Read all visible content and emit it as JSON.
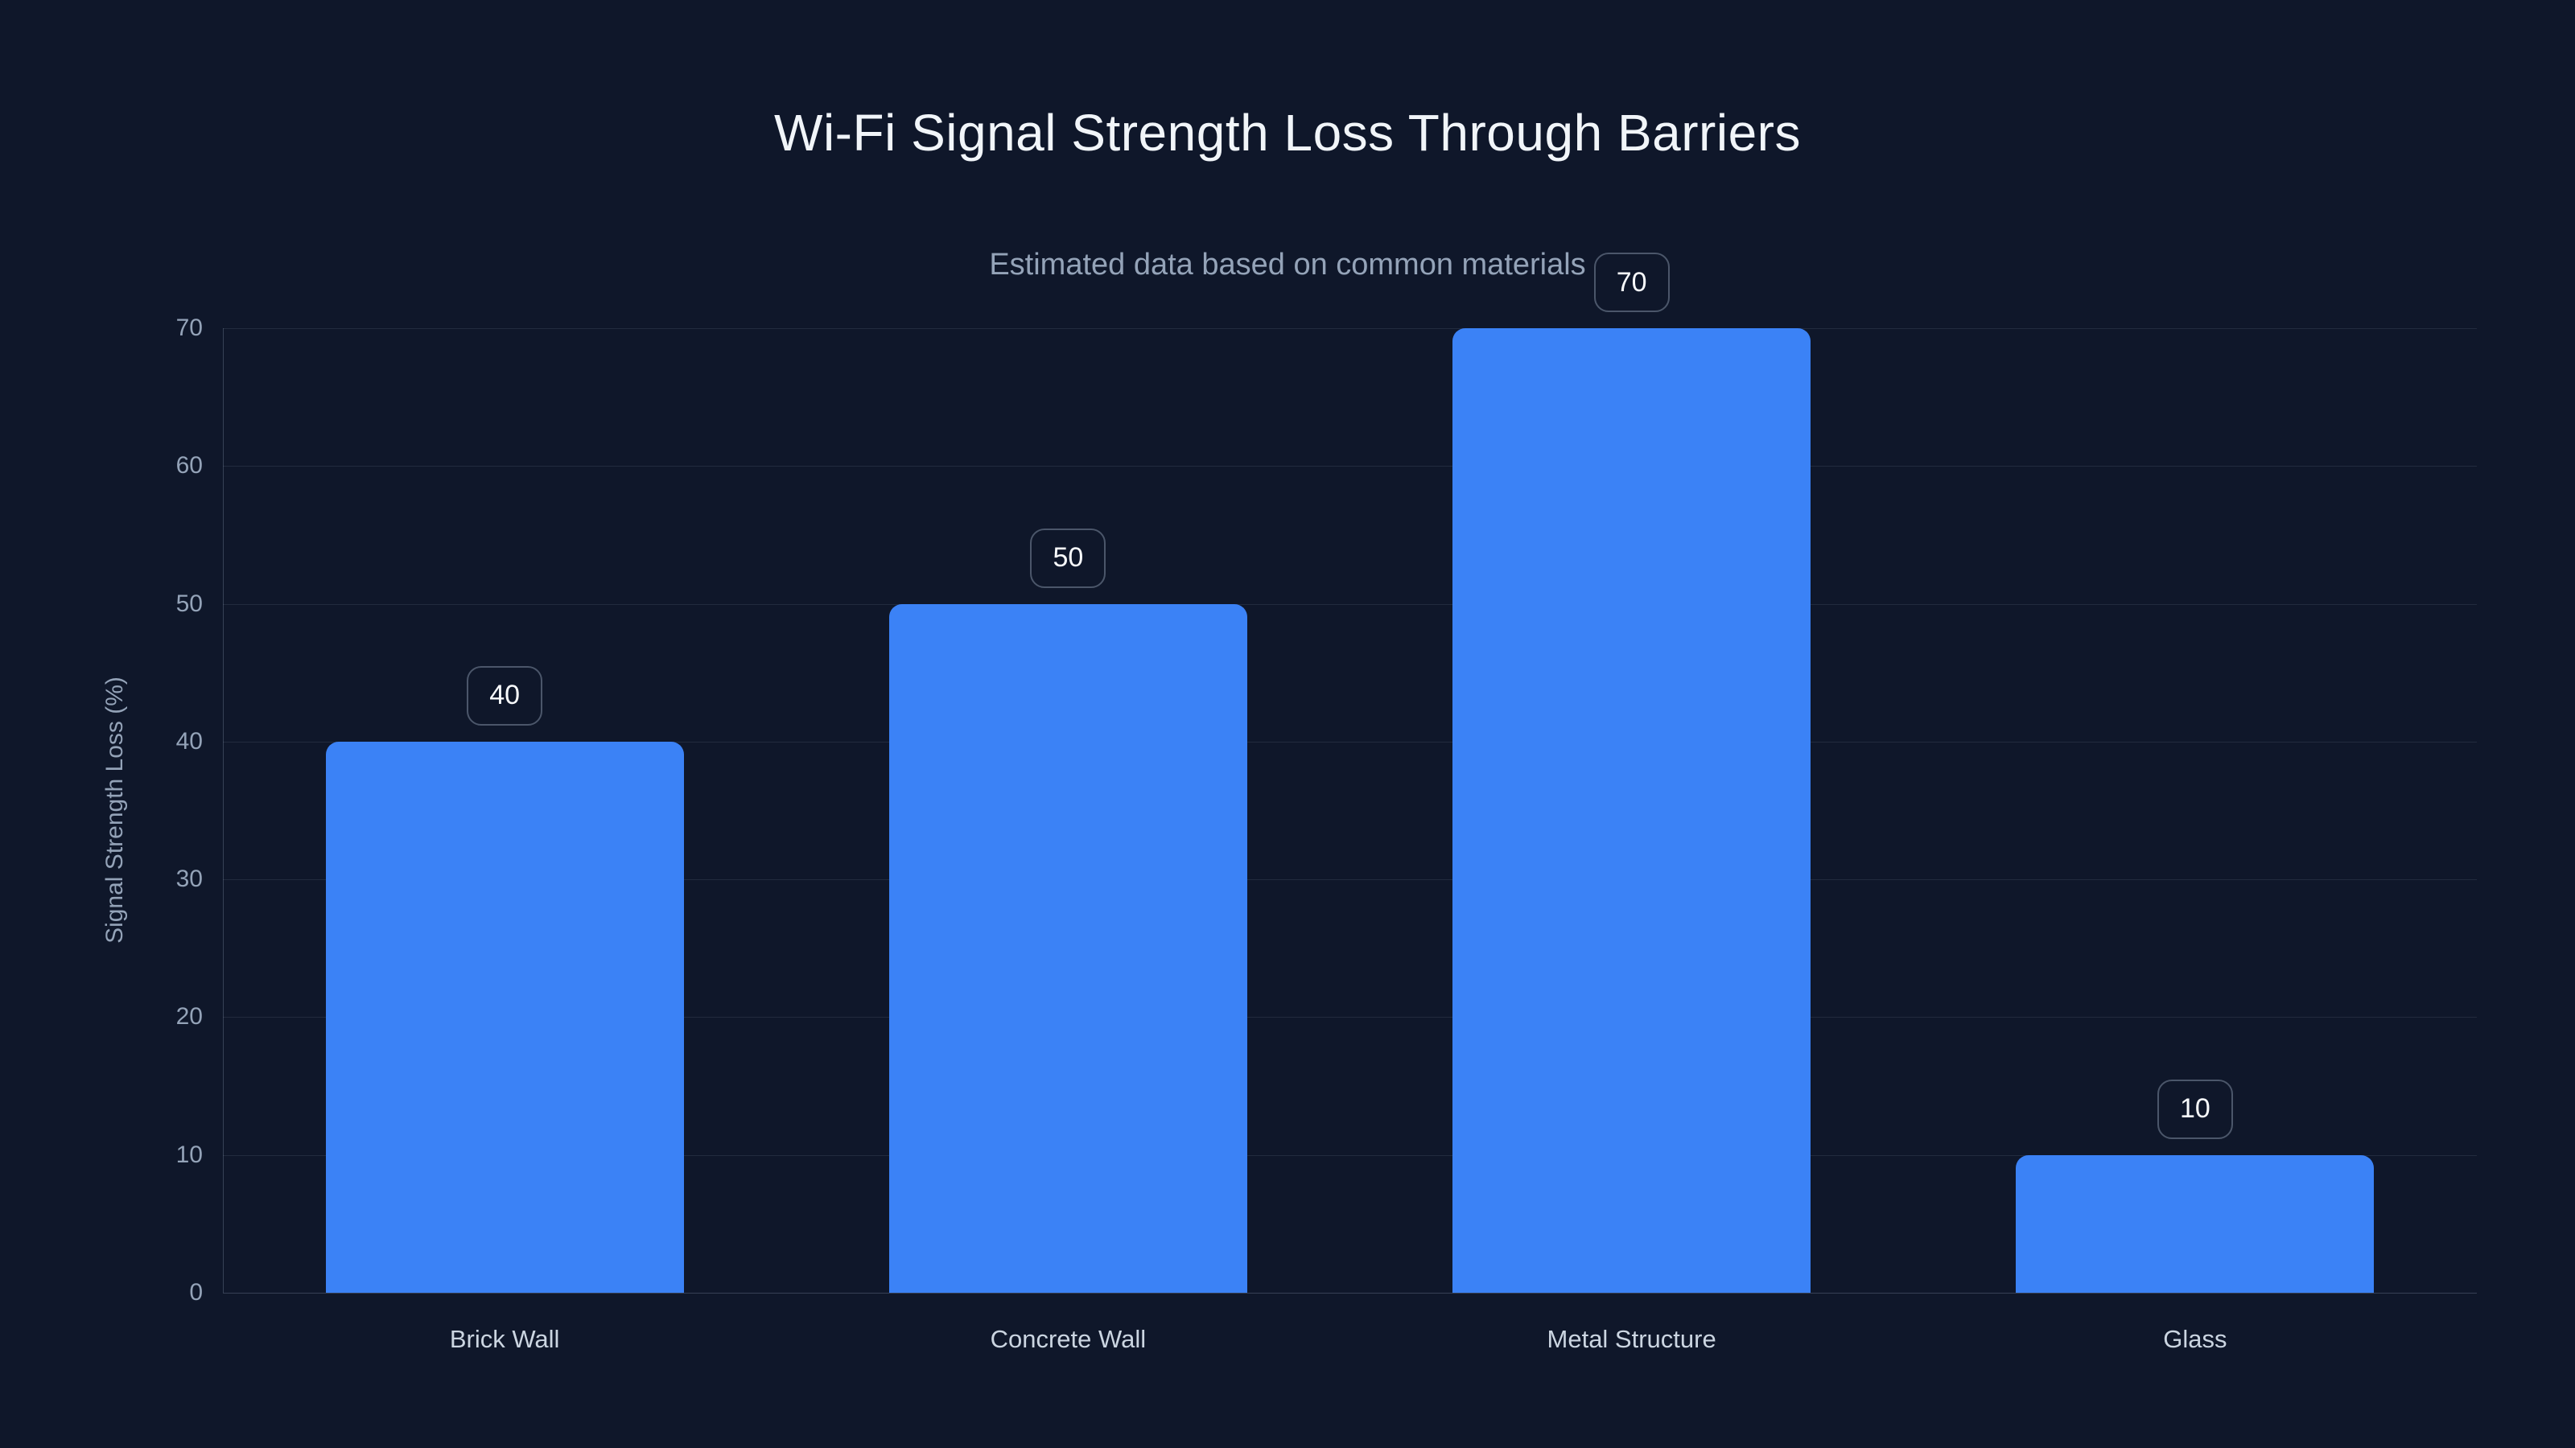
{
  "chart_data": {
    "type": "bar",
    "title": "Wi-Fi Signal Strength Loss Through Barriers",
    "subtitle": "Estimated data based on common materials",
    "categories": [
      "Brick Wall",
      "Concrete Wall",
      "Metal Structure",
      "Glass"
    ],
    "values": [
      40,
      50,
      70,
      10
    ],
    "value_labels": [
      "40",
      "50",
      "70",
      "10"
    ],
    "xlabel": "",
    "ylabel": "Signal Strength Loss (%)",
    "ylim": [
      0,
      70
    ],
    "yticks": [
      0,
      10,
      20,
      30,
      40,
      50,
      60,
      70
    ],
    "grid": true,
    "legend": false
  },
  "colors": {
    "background": "#0f172a",
    "bar": "#3b82f6",
    "title_text": "#f1f5f9",
    "subtitle_text": "#94a3b8",
    "tick_text": "#94a3b8",
    "x_label_text": "#cbd5e1",
    "badge_text": "#f8fafc",
    "badge_border": "rgba(148,163,184,0.45)",
    "gridline": "rgba(148,163,184,0.15)"
  }
}
